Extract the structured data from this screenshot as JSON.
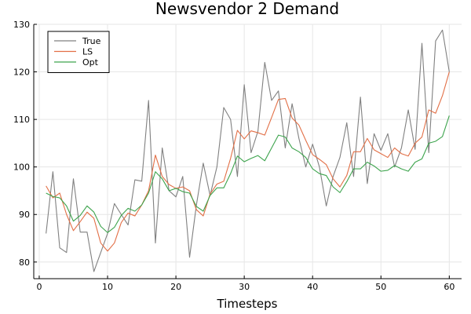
{
  "chart_data": {
    "type": "line",
    "title": "Newsvendor 2 Demand",
    "xlabel": "Timesteps",
    "ylabel": "",
    "xlim": [
      -0.8,
      61.8
    ],
    "ylim": [
      76.5,
      130.0
    ],
    "xticks": [
      0,
      10,
      20,
      30,
      40,
      50,
      60
    ],
    "yticks": [
      80,
      90,
      100,
      110,
      120,
      130
    ],
    "grid": true,
    "legend_position": "top-left",
    "x": [
      1,
      2,
      3,
      4,
      5,
      6,
      7,
      8,
      9,
      10,
      11,
      12,
      13,
      14,
      15,
      16,
      17,
      18,
      19,
      20,
      21,
      22,
      23,
      24,
      25,
      26,
      27,
      28,
      29,
      30,
      31,
      32,
      33,
      34,
      35,
      36,
      37,
      38,
      39,
      40,
      41,
      42,
      43,
      44,
      45,
      46,
      47,
      48,
      49,
      50,
      51,
      52,
      53,
      54,
      55,
      56,
      57,
      58,
      59,
      60
    ],
    "series": [
      {
        "name": "True",
        "color": "#808080",
        "values": [
          86.0,
          99.0,
          83.0,
          82.0,
          97.5,
          86.3,
          86.3,
          78.0,
          82.0,
          86.0,
          92.3,
          90.0,
          87.8,
          97.3,
          97.0,
          114.0,
          84.0,
          104.0,
          95.0,
          93.7,
          98.0,
          81.0,
          92.0,
          100.8,
          94.0,
          100.0,
          112.5,
          110.0,
          98.0,
          117.3,
          103.0,
          107.5,
          122.0,
          114.0,
          116.0,
          104.0,
          113.3,
          106.0,
          100.0,
          104.8,
          100.0,
          91.8,
          98.0,
          102.0,
          109.3,
          98.0,
          114.7,
          96.5,
          107.0,
          103.5,
          107.0,
          100.0,
          104.0,
          112.0,
          103.7,
          126.0,
          103.0,
          126.5,
          128.8,
          120.0
        ]
      },
      {
        "name": "LS",
        "color": "#e26f46",
        "values": [
          96.0,
          93.5,
          94.5,
          90.0,
          86.6,
          88.5,
          90.5,
          89.2,
          84.0,
          82.3,
          84.0,
          88.3,
          90.3,
          89.7,
          92.0,
          95.0,
          102.5,
          98.0,
          96.3,
          95.5,
          95.8,
          95.0,
          91.0,
          89.7,
          94.3,
          96.4,
          97.0,
          101.8,
          107.7,
          105.9,
          107.6,
          107.2,
          106.7,
          110.4,
          114.2,
          114.4,
          110.3,
          108.8,
          105.6,
          102.6,
          101.6,
          100.5,
          97.5,
          95.8,
          98.2,
          103.2,
          103.2,
          106.0,
          103.6,
          102.8,
          102.0,
          104.0,
          102.8,
          102.3,
          105.0,
          106.3,
          112.0,
          111.3,
          115.0,
          120.0
        ]
      },
      {
        "name": "Opt",
        "color": "#3da44d",
        "values": [
          94.5,
          93.8,
          93.5,
          91.8,
          88.6,
          89.8,
          91.8,
          90.5,
          87.5,
          86.2,
          87.3,
          89.8,
          91.3,
          90.7,
          92.0,
          94.5,
          99.0,
          97.5,
          95.0,
          95.5,
          94.8,
          94.5,
          91.7,
          90.7,
          94.0,
          95.6,
          95.6,
          98.6,
          102.3,
          101.1,
          101.8,
          102.4,
          101.3,
          104.0,
          106.7,
          106.3,
          104.0,
          103.2,
          102.0,
          99.6,
          98.6,
          98.2,
          95.8,
          94.6,
          96.9,
          99.6,
          99.6,
          101.0,
          100.2,
          99.1,
          99.3,
          100.3,
          99.6,
          99.1,
          101.0,
          101.7,
          105.0,
          105.4,
          106.4,
          110.8
        ]
      }
    ]
  }
}
